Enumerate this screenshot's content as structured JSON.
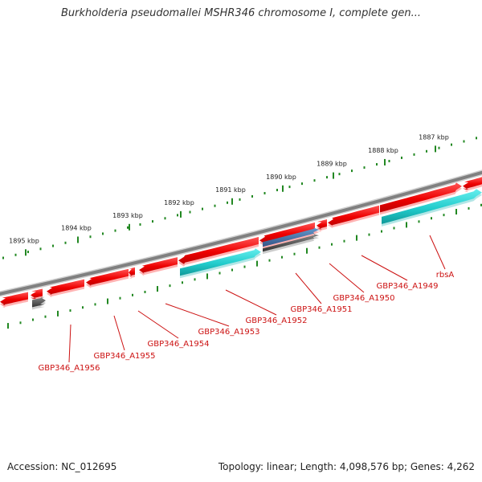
{
  "title": "Burkholderia pseudomallei MSHR346 chromosome I, complete gen...",
  "footer": {
    "accession": "Accession: NC_012695",
    "summary": "Topology: linear; Length: 4,098,576 bp; Genes: 4,262"
  },
  "colors": {
    "backbone": "#808080",
    "gene": "#ee0000",
    "cds": "#22cccc",
    "rna": "#4477aa",
    "pseudo": "#555555",
    "tick": "#228822",
    "label": "#cc1111"
  },
  "scale": {
    "unit": "kbp",
    "labels": [
      "1887 kbp",
      "1888 kbp",
      "1889 kbp",
      "1890 kbp",
      "1891 kbp",
      "1892 kbp",
      "1893 kbp",
      "1894 kbp",
      "1895 kbp"
    ]
  },
  "genes": [
    {
      "label": "rbsA",
      "color_key": "gene"
    },
    {
      "label": "GBP346_A1949",
      "color_key": "gene"
    },
    {
      "label": "GBP346_A1950",
      "color_key": "gene"
    },
    {
      "label": "GBP346_A1951",
      "color_key": "rna"
    },
    {
      "label": "GBP346_A1952",
      "color_key": "gene"
    },
    {
      "label": "GBP346_A1953",
      "color_key": "gene"
    },
    {
      "label": "GBP346_A1954",
      "color_key": "gene"
    },
    {
      "label": "GBP346_A1955",
      "color_key": "gene"
    },
    {
      "label": "GBP346_A1956",
      "color_key": "gene"
    }
  ]
}
